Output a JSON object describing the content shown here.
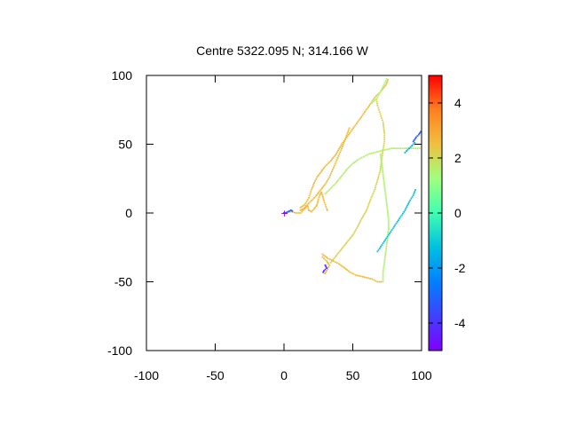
{
  "chart_data": {
    "type": "scatter",
    "title": "Centre 5322.095 N; 314.166  W",
    "xlabel": "",
    "ylabel": "",
    "xlim": [
      -100,
      100
    ],
    "ylim": [
      -100,
      100
    ],
    "xticks": [
      -100,
      -50,
      0,
      50,
      100
    ],
    "yticks": [
      -100,
      -50,
      0,
      50,
      100
    ],
    "xtick_labels": [
      "-100",
      "-50",
      "0",
      "50",
      "100"
    ],
    "ytick_labels": [
      "-100",
      "-50",
      "0",
      "50",
      "100"
    ],
    "grid": false,
    "colorbar": {
      "range": [
        -5,
        5
      ],
      "ticks": [
        -4,
        -2,
        0,
        2,
        4
      ],
      "tick_labels": [
        "-4",
        "-2",
        "0",
        "2",
        "4"
      ],
      "palette": "rainbow"
    },
    "tracks": [
      {
        "c": 2.6,
        "points": [
          [
            12,
            4
          ],
          [
            15,
            6
          ],
          [
            18,
            11
          ],
          [
            20,
            17
          ],
          [
            22,
            22
          ],
          [
            24,
            26
          ],
          [
            27,
            30
          ],
          [
            30,
            34
          ],
          [
            34,
            38
          ],
          [
            38,
            43
          ],
          [
            42,
            50
          ],
          [
            47,
            57
          ],
          [
            52,
            64
          ],
          [
            57,
            71
          ],
          [
            62,
            78
          ],
          [
            66,
            84
          ],
          [
            70,
            88
          ],
          [
            74,
            93
          ],
          [
            76,
            98
          ]
        ]
      },
      {
        "c": 2.6,
        "points": [
          [
            12,
            2
          ],
          [
            14,
            3
          ],
          [
            17,
            6
          ],
          [
            20,
            9
          ],
          [
            23,
            12
          ],
          [
            26,
            16
          ],
          [
            30,
            21
          ],
          [
            33,
            26
          ],
          [
            36,
            33
          ],
          [
            39,
            40
          ],
          [
            42,
            47
          ],
          [
            45,
            55
          ],
          [
            48,
            63
          ]
        ]
      },
      {
        "c": 2.6,
        "points": [
          [
            1,
            0
          ],
          [
            5,
            1
          ],
          [
            9,
            0
          ],
          [
            12,
            0
          ],
          [
            14,
            2
          ],
          [
            16,
            4
          ],
          [
            17,
            6
          ],
          [
            18,
            2
          ],
          [
            20,
            1
          ],
          [
            22,
            3
          ],
          [
            24,
            6
          ],
          [
            25,
            10
          ],
          [
            26,
            13
          ],
          [
            27,
            15
          ],
          [
            28,
            13
          ],
          [
            29,
            9
          ],
          [
            30,
            6
          ],
          [
            31,
            3
          ],
          [
            32,
            1
          ]
        ]
      },
      {
        "c": 2.6,
        "points": [
          [
            28,
            -30
          ],
          [
            32,
            -33
          ],
          [
            36,
            -35
          ],
          [
            40,
            -37
          ],
          [
            44,
            -40
          ],
          [
            48,
            -43
          ],
          [
            52,
            -45
          ],
          [
            56,
            -46
          ],
          [
            60,
            -47
          ],
          [
            64,
            -48
          ],
          [
            68,
            -50
          ],
          [
            72,
            -50
          ]
        ]
      },
      {
        "c": 2.6,
        "points": [
          [
            28,
            -32
          ],
          [
            31,
            -35
          ],
          [
            33,
            -38
          ],
          [
            31,
            -42
          ],
          [
            29,
            -45
          ]
        ]
      },
      {
        "c": 2.1,
        "points": [
          [
            34,
            -36
          ],
          [
            38,
            -31
          ],
          [
            42,
            -26
          ],
          [
            46,
            -21
          ],
          [
            50,
            -16
          ],
          [
            53,
            -11
          ],
          [
            56,
            -5
          ],
          [
            60,
            2
          ],
          [
            63,
            10
          ],
          [
            66,
            17
          ],
          [
            68,
            24
          ],
          [
            70,
            31
          ],
          [
            71,
            39
          ],
          [
            72,
            46
          ],
          [
            73,
            52
          ],
          [
            73,
            58
          ],
          [
            72,
            66
          ],
          [
            70,
            72
          ],
          [
            68,
            78
          ],
          [
            67,
            84
          ]
        ]
      },
      {
        "c": 1.5,
        "points": [
          [
            72,
            -50
          ],
          [
            72,
            -43
          ],
          [
            73,
            -36
          ],
          [
            74,
            -28
          ],
          [
            75,
            -20
          ],
          [
            76,
            -12
          ],
          [
            76,
            -4
          ],
          [
            75,
            4
          ],
          [
            74,
            12
          ],
          [
            73,
            20
          ],
          [
            72,
            28
          ],
          [
            71,
            36
          ],
          [
            70,
            44
          ]
        ]
      },
      {
        "c": 1.6,
        "points": [
          [
            30,
            14
          ],
          [
            34,
            18
          ],
          [
            38,
            22
          ],
          [
            42,
            27
          ],
          [
            46,
            32
          ],
          [
            50,
            36
          ],
          [
            54,
            39
          ],
          [
            58,
            41
          ],
          [
            62,
            43
          ],
          [
            66,
            44
          ],
          [
            70,
            45
          ],
          [
            74,
            46
          ],
          [
            78,
            47
          ],
          [
            82,
            47
          ],
          [
            86,
            47
          ],
          [
            90,
            47
          ],
          [
            94,
            47
          ],
          [
            97,
            47
          ],
          [
            100,
            47
          ]
        ]
      },
      {
        "c": 1.2,
        "points": [
          [
            64,
            80
          ],
          [
            68,
            84
          ],
          [
            70,
            88
          ],
          [
            72,
            92
          ],
          [
            74,
            96
          ],
          [
            75,
            99
          ]
        ]
      },
      {
        "c": -1.2,
        "points": [
          [
            68,
            -28
          ],
          [
            72,
            -22
          ],
          [
            76,
            -16
          ],
          [
            80,
            -10
          ],
          [
            84,
            -4
          ],
          [
            88,
            2
          ],
          [
            91,
            8
          ],
          [
            94,
            13
          ],
          [
            96,
            18
          ]
        ]
      },
      {
        "c": -1.5,
        "points": [
          [
            88,
            44
          ],
          [
            90,
            46
          ],
          [
            92,
            48
          ],
          [
            94,
            50
          ],
          [
            96,
            52
          ]
        ]
      },
      {
        "c": -3.2,
        "points": [
          [
            94,
            52
          ],
          [
            96,
            55
          ],
          [
            98,
            57
          ],
          [
            100,
            60
          ]
        ]
      },
      {
        "c": -3.0,
        "points": [
          [
            1,
            0
          ],
          [
            3,
            1
          ],
          [
            5,
            2
          ],
          [
            7,
            1
          ]
        ]
      },
      {
        "c": -4.2,
        "points": [
          [
            30,
            -38
          ],
          [
            31,
            -40
          ],
          [
            29,
            -42
          ],
          [
            28,
            -44
          ]
        ]
      },
      {
        "c": -4.5,
        "points": [
          [
            0,
            0
          ],
          [
            -1,
            0
          ]
        ]
      }
    ]
  }
}
